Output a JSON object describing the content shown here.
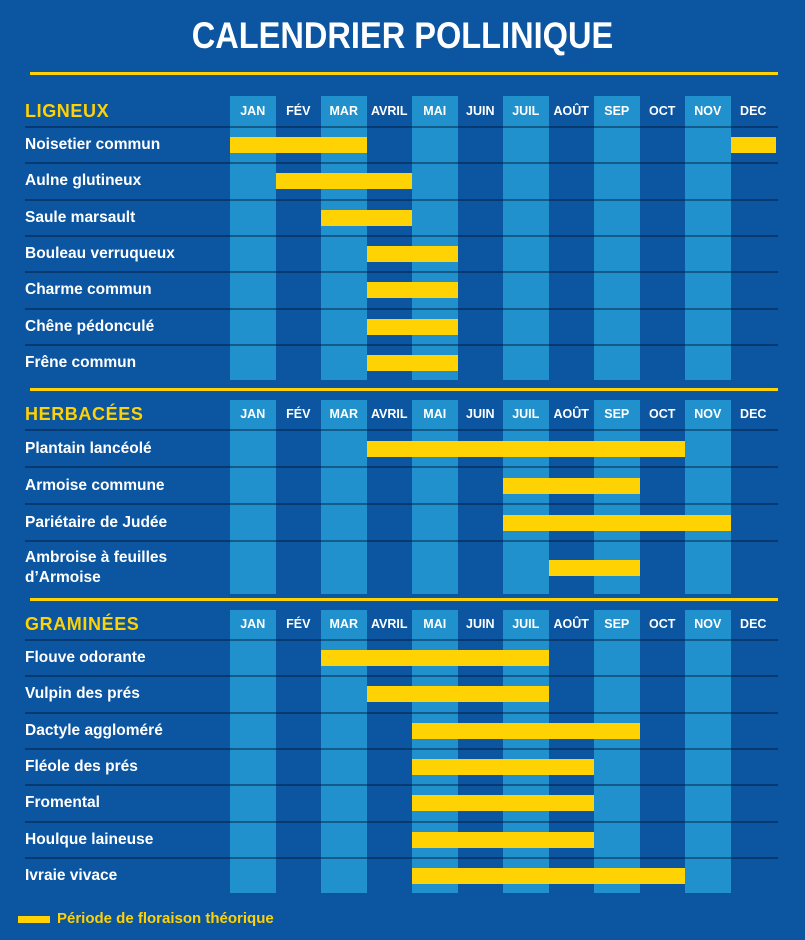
{
  "title": "CALENDRIER POLLINIQUE",
  "legend": {
    "label": "Période de floraison théorique"
  },
  "colors": {
    "background": "#0b55a1",
    "column_stripe": "#2191ce",
    "bar": "#ffd204",
    "accent": "#ffd204",
    "text": "#ffffff"
  },
  "chart_data": {
    "type": "bar",
    "subtype": "gantt-calendar",
    "title": "CALENDRIER POLLINIQUE",
    "legend": "Période de floraison théorique",
    "x_categories": [
      "JAN",
      "FÉV",
      "MAR",
      "AVRIL",
      "MAI",
      "JUIN",
      "JUIL",
      "AOÛT",
      "SEP",
      "OCT",
      "NOV",
      "DEC"
    ],
    "highlighted_columns": [
      "JAN",
      "MAR",
      "MAI",
      "JUIL",
      "SEP",
      "NOV"
    ],
    "sections": [
      {
        "title": "LIGNEUX",
        "rows": [
          {
            "label": "Noisetier commun",
            "periods": [
              [
                "JAN",
                "MAR"
              ],
              [
                "DEC",
                "DEC"
              ]
            ]
          },
          {
            "label": "Aulne glutineux",
            "periods": [
              [
                "FÉV",
                "AVRIL"
              ]
            ]
          },
          {
            "label": "Saule marsault",
            "periods": [
              [
                "MAR",
                "AVRIL"
              ]
            ]
          },
          {
            "label": "Bouleau verruqueux",
            "periods": [
              [
                "AVRIL",
                "MAI"
              ]
            ]
          },
          {
            "label": "Charme commun",
            "periods": [
              [
                "AVRIL",
                "MAI"
              ]
            ]
          },
          {
            "label": "Chêne pédonculé",
            "periods": [
              [
                "AVRIL",
                "MAI"
              ]
            ]
          },
          {
            "label": "Frêne commun",
            "periods": [
              [
                "AVRIL",
                "MAI"
              ]
            ]
          }
        ]
      },
      {
        "title": "HERBACÉES",
        "rows": [
          {
            "label": "Plantain lancéolé",
            "periods": [
              [
                "AVRIL",
                "OCT"
              ]
            ]
          },
          {
            "label": "Armoise commune",
            "periods": [
              [
                "JUIL",
                "SEP"
              ]
            ]
          },
          {
            "label": "Pariétaire de Judée",
            "periods": [
              [
                "JUIL",
                "NOV"
              ]
            ]
          },
          {
            "label": "Ambroise à feuilles d’Armoise",
            "tall": true,
            "periods": [
              [
                "AOÛT",
                "SEP"
              ]
            ]
          }
        ]
      },
      {
        "title": "GRAMINÉES",
        "rows": [
          {
            "label": "Flouve odorante",
            "periods": [
              [
                "MAR",
                "JUIL"
              ]
            ]
          },
          {
            "label": "Vulpin des prés",
            "periods": [
              [
                "AVRIL",
                "JUIL"
              ]
            ]
          },
          {
            "label": "Dactyle aggloméré",
            "periods": [
              [
                "MAI",
                "SEP"
              ]
            ]
          },
          {
            "label": "Fléole des prés",
            "periods": [
              [
                "MAI",
                "AOÛT"
              ]
            ]
          },
          {
            "label": "Fromental",
            "periods": [
              [
                "MAI",
                "AOÛT"
              ]
            ]
          },
          {
            "label": "Houlque laineuse",
            "periods": [
              [
                "MAI",
                "AOÛT"
              ]
            ]
          },
          {
            "label": "Ivraie vivace",
            "periods": [
              [
                "MAI",
                "OCT"
              ]
            ]
          }
        ]
      }
    ]
  }
}
